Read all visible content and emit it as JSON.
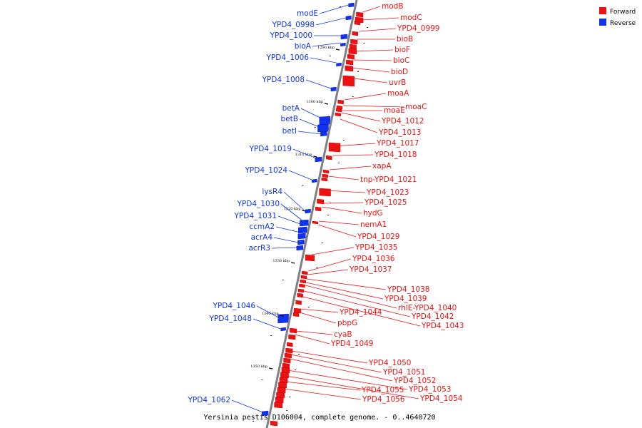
{
  "caption": "Yersinia pestis D106004, complete genome. - 0..4640720",
  "legend": {
    "forward_label": "Forward",
    "reverse_label": "Reverse",
    "forward_color": "#ee1111",
    "reverse_color": "#1133ee"
  },
  "axis_color": "#808080",
  "ticks": [
    "1290 kbp",
    "1300 kbp",
    "1310 kbp",
    "1320 kbp",
    "1330 kbp",
    "1340 kbp",
    "1350 kbp"
  ],
  "reverse_genes": [
    "modE",
    "YPD4_0998",
    "YPD4_1000",
    "bioA",
    "YPD4_1006",
    "YPD4_1008",
    "betA",
    "betB",
    "betI",
    "YPD4_1019",
    "YPD4_1024",
    "lysR4",
    "YPD4_1030",
    "YPD4_1031",
    "ccmA2",
    "acrA4",
    "acrR3",
    "YPD4_1046",
    "YPD4_1048",
    "YPD4_1062"
  ],
  "forward_genes": [
    "modB",
    "modC",
    "YPD4_0999",
    "bioB",
    "bioF",
    "bioC",
    "bioD",
    "uvrB",
    "moaA",
    "moaC",
    "moaE",
    "YPD4_1012",
    "YPD4_1013",
    "YPD4_1017",
    "YPD4_1018",
    "xapA",
    "tnp-YPD4_1021",
    "YPD4_1023",
    "YPD4_1025",
    "hydG",
    "nemA1",
    "YPD4_1029",
    "YPD4_1035",
    "YPD4_1036",
    "YPD4_1037",
    "YPD4_1038",
    "YPD4_1039",
    "rhlE-YPD4_1040",
    "YPD4_1042",
    "YPD4_1043",
    "YPD4_1044",
    "pbpG",
    "cyaB",
    "YPD4_1049",
    "YPD4_1050",
    "YPD4_1051",
    "YPD4_1052",
    "YPD4_1053",
    "YPD4_1054",
    "YPD4_1055",
    "YPD4_1056"
  ]
}
